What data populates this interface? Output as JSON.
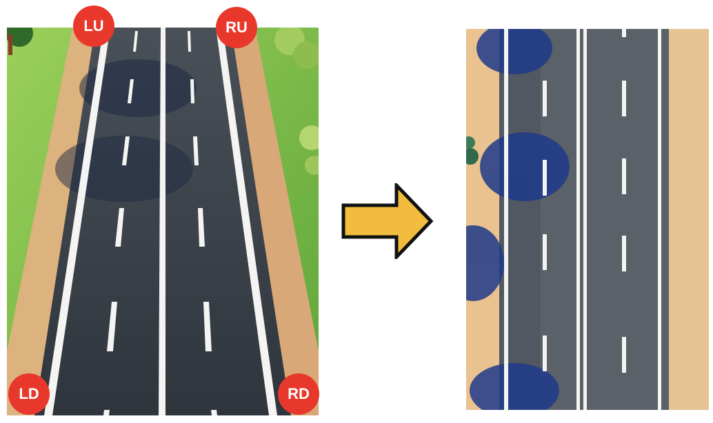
{
  "corner_labels": {
    "left_up": "LU",
    "right_up": "RU",
    "left_down": "LD",
    "right_down": "RD"
  },
  "colors": {
    "badge": "#e8382b",
    "arrow_fill": "#f2bd3e",
    "arrow_stroke": "#111111",
    "road": "#3a4048",
    "grass": "#7cbc45",
    "dirt": "#dcb27f",
    "shadow": "#1e3366"
  },
  "icons": {
    "arrow": "right-arrow-icon"
  }
}
